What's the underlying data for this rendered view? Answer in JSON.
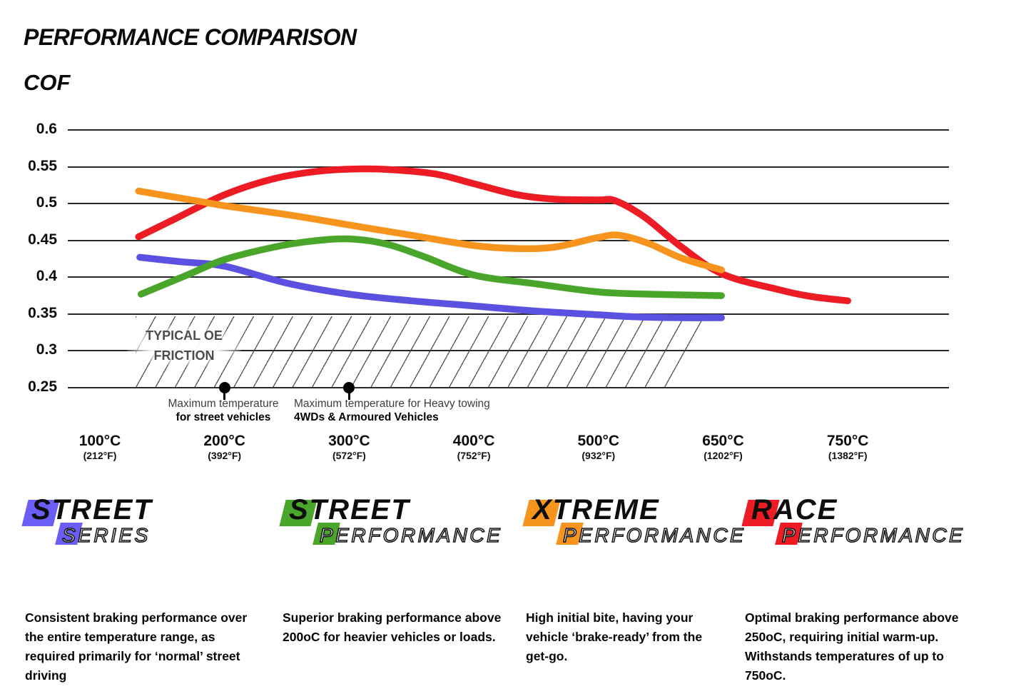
{
  "page": {
    "title": "PERFORMANCE COMPARISON",
    "axis_label": "COF"
  },
  "chart_data": {
    "type": "line",
    "title": "PERFORMANCE COMPARISON",
    "ylabel": "COF",
    "ylim": [
      0.25,
      0.6
    ],
    "grid": true,
    "y_ticks": [
      "0.6",
      "0.55",
      "0.5",
      "0.45",
      "0.4",
      "0.35",
      "0.3",
      "0.25"
    ],
    "x_ticks": [
      {
        "temp": 100,
        "label_c": "100°C",
        "label_f": "(212°F)"
      },
      {
        "temp": 200,
        "label_c": "200°C",
        "label_f": "(392°F)"
      },
      {
        "temp": 300,
        "label_c": "300°C",
        "label_f": "(572°F)"
      },
      {
        "temp": 400,
        "label_c": "400°C",
        "label_f": "(752°F)"
      },
      {
        "temp": 500,
        "label_c": "500°C",
        "label_f": "(932°F)"
      },
      {
        "temp": 650,
        "label_c": "650°C",
        "label_f": "(1202°F)"
      },
      {
        "temp": 750,
        "label_c": "750°C",
        "label_f": "(1382°F)"
      }
    ],
    "series": [
      {
        "name": "Street Series",
        "color": "#5b51e1",
        "points": [
          [
            132,
            0.427
          ],
          [
            165,
            0.421
          ],
          [
            200,
            0.415
          ],
          [
            250,
            0.392
          ],
          [
            300,
            0.377
          ],
          [
            350,
            0.368
          ],
          [
            400,
            0.361
          ],
          [
            450,
            0.354
          ],
          [
            500,
            0.349
          ],
          [
            550,
            0.346
          ],
          [
            600,
            0.345
          ],
          [
            648,
            0.345
          ]
        ]
      },
      {
        "name": "Street Performance",
        "color": "#4aa62b",
        "points": [
          [
            133,
            0.377
          ],
          [
            170,
            0.403
          ],
          [
            200,
            0.424
          ],
          [
            240,
            0.441
          ],
          [
            270,
            0.449
          ],
          [
            300,
            0.452
          ],
          [
            330,
            0.445
          ],
          [
            360,
            0.428
          ],
          [
            400,
            0.403
          ],
          [
            450,
            0.391
          ],
          [
            500,
            0.38
          ],
          [
            560,
            0.377
          ],
          [
            648,
            0.375
          ]
        ]
      },
      {
        "name": "Race Performance",
        "color": "#ed1c24",
        "points": [
          [
            131,
            0.455
          ],
          [
            160,
            0.479
          ],
          [
            200,
            0.512
          ],
          [
            240,
            0.534
          ],
          [
            275,
            0.544
          ],
          [
            305,
            0.547
          ],
          [
            335,
            0.546
          ],
          [
            370,
            0.54
          ],
          [
            400,
            0.527
          ],
          [
            435,
            0.512
          ],
          [
            465,
            0.506
          ],
          [
            500,
            0.505
          ],
          [
            520,
            0.504
          ],
          [
            555,
            0.482
          ],
          [
            600,
            0.441
          ],
          [
            650,
            0.404
          ],
          [
            695,
            0.383
          ],
          [
            720,
            0.374
          ],
          [
            750,
            0.368
          ]
        ]
      },
      {
        "name": "Xtreme Performance",
        "color": "#f7941d",
        "points": [
          [
            131,
            0.517
          ],
          [
            180,
            0.503
          ],
          [
            200,
            0.497
          ],
          [
            250,
            0.485
          ],
          [
            300,
            0.471
          ],
          [
            350,
            0.457
          ],
          [
            400,
            0.443
          ],
          [
            435,
            0.439
          ],
          [
            465,
            0.441
          ],
          [
            500,
            0.454
          ],
          [
            525,
            0.457
          ],
          [
            560,
            0.446
          ],
          [
            600,
            0.426
          ],
          [
            648,
            0.41
          ]
        ]
      }
    ],
    "oe_zone": {
      "label_line1": "TYPICAL OE",
      "label_line2": "FRICTION",
      "cof_range": [
        0.25,
        0.35
      ]
    },
    "annotations": [
      {
        "temp": 200,
        "line1": "Maximum temperature",
        "line2": "for street vehicles"
      },
      {
        "temp": 300,
        "line1": "Maximum temperature for Heavy towing",
        "line2": "4WDs & Armoured Vehicles"
      }
    ]
  },
  "legend": [
    {
      "word1": "STREET",
      "word2": "SERIES",
      "color": "#6b5ef7",
      "description": "Consistent braking performance over the entire temperature range, as required primarily for ‘normal’ street driving"
    },
    {
      "word1": "STREET",
      "word2": "PERFORMANCE",
      "color": "#4aa62b",
      "description": "Superior braking performance above 200oC for heavier vehicles or loads."
    },
    {
      "word1": "XTREME",
      "word2": "PERFORMANCE",
      "color": "#f7941d",
      "description": "High initial bite, having your vehicle ‘brake-ready’ from the get-go."
    },
    {
      "word1": "RACE",
      "word2": "PERFORMANCE",
      "color": "#ed1c24",
      "description": "Optimal braking performance above 250oC, requiring initial warm-up. Withstands temperatures of up to 750oC."
    }
  ]
}
